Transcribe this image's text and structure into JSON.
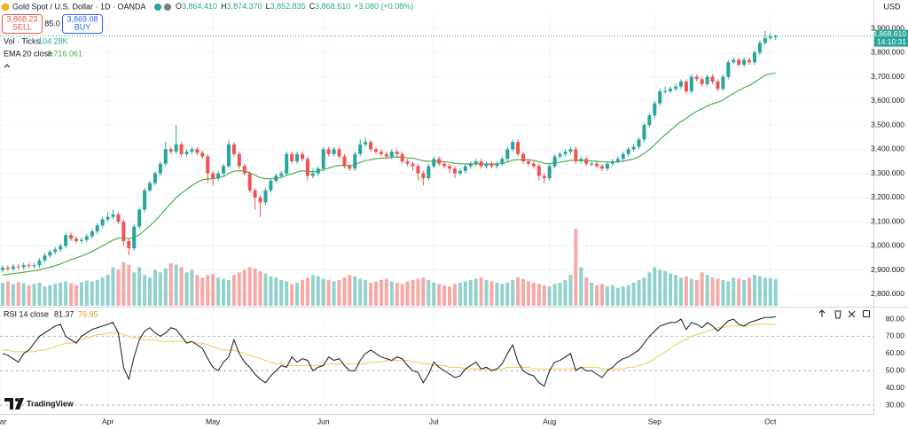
{
  "chart_data": {
    "type": "candlestick",
    "title": "Gold Spot / U.S. Dollar · 1D · OANDA",
    "currency": "USD",
    "sell": {
      "price": "3,868.23",
      "label": "SELL"
    },
    "buy": {
      "price": "3,869.08",
      "label": "BUY"
    },
    "spread": "85.0",
    "ohlc_header": [
      {
        "key": "O",
        "label": "3,864.410"
      },
      {
        "key": "H",
        "label": "3,874.370"
      },
      {
        "key": "L",
        "label": "3,852.835"
      },
      {
        "key": "C",
        "label": "3,868.610"
      }
    ],
    "change": "+3.080 (+0.08%)",
    "last_price_label": "3,868.610",
    "countdown": "14:10:31",
    "brand": "TradingView",
    "up_color": "#26a69a",
    "down_color": "#ef5350",
    "grid": true,
    "xlim": [
      -0.5,
      165.6
    ],
    "xticks": [
      {
        "value": -0.5,
        "label": "Mar"
      },
      {
        "value": 20,
        "label": "Apr"
      },
      {
        "value": 40,
        "label": "May"
      },
      {
        "value": 61,
        "label": "Jun"
      },
      {
        "value": 82,
        "label": "Jul"
      },
      {
        "value": 104,
        "label": "Aug"
      },
      {
        "value": 124,
        "label": "Sep"
      },
      {
        "value": 146,
        "label": "Oct"
      }
    ],
    "ylim": [
      2752,
      3959
    ],
    "yticks": [
      {
        "value": 2800,
        "label": "2,800.000"
      },
      {
        "value": 2900,
        "label": "2,900.000"
      },
      {
        "value": 3000,
        "label": "3,000.000"
      },
      {
        "value": 3100,
        "label": "3,100.000"
      },
      {
        "value": 3200,
        "label": "3,200.000"
      },
      {
        "value": 3300,
        "label": "3,300.000"
      },
      {
        "value": 3400,
        "label": "3,400.000"
      },
      {
        "value": 3500,
        "label": "3,500.000"
      },
      {
        "value": 3600,
        "label": "3,600.000"
      },
      {
        "value": 3700,
        "label": "3,700.000"
      },
      {
        "value": 3800,
        "label": "3,800.000"
      },
      {
        "value": 3900,
        "label": "3,900.000"
      }
    ],
    "candles": {
      "open": [
        2900,
        2910,
        2905,
        2915,
        2912,
        2920,
        2918,
        2920,
        2940,
        2960,
        2975,
        2985,
        3000,
        3045,
        3030,
        3020,
        3025,
        3040,
        3060,
        3085,
        3110,
        3120,
        3130,
        3100,
        3020,
        2990,
        3080,
        3150,
        3230,
        3260,
        3300,
        3340,
        3400,
        3390,
        3420,
        3380,
        3390,
        3400,
        3385,
        3370,
        3300,
        3280,
        3300,
        3330,
        3420,
        3380,
        3330,
        3300,
        3230,
        3200,
        3180,
        3230,
        3270,
        3290,
        3300,
        3380,
        3350,
        3380,
        3360,
        3290,
        3300,
        3320,
        3400,
        3380,
        3400,
        3370,
        3330,
        3320,
        3380,
        3420,
        3430,
        3400,
        3390,
        3380,
        3370,
        3390,
        3380,
        3350,
        3340,
        3330,
        3300,
        3280,
        3330,
        3360,
        3340,
        3330,
        3320,
        3300,
        3310,
        3330,
        3340,
        3350,
        3330,
        3340,
        3330,
        3340,
        3360,
        3400,
        3430,
        3380,
        3350,
        3340,
        3330,
        3290,
        3280,
        3330,
        3370,
        3380,
        3390,
        3400,
        3350,
        3360,
        3340,
        3340,
        3330,
        3320,
        3340,
        3350,
        3360,
        3380,
        3400,
        3410,
        3440,
        3500,
        3540,
        3590,
        3640,
        3640,
        3650,
        3660,
        3680,
        3640,
        3700,
        3690,
        3670,
        3700,
        3680,
        3650,
        3700,
        3760,
        3770,
        3750,
        3770,
        3760,
        3800,
        3840,
        3860,
        3864.41
      ],
      "high": [
        2920,
        2920,
        2925,
        2925,
        2930,
        2930,
        2930,
        2950,
        2970,
        2985,
        2995,
        3010,
        3055,
        3055,
        3040,
        3035,
        3050,
        3070,
        3095,
        3120,
        3140,
        3150,
        3140,
        3110,
        3030,
        3090,
        3160,
        3240,
        3270,
        3310,
        3350,
        3430,
        3410,
        3500,
        3430,
        3400,
        3410,
        3410,
        3395,
        3380,
        3310,
        3310,
        3340,
        3440,
        3430,
        3390,
        3340,
        3310,
        3240,
        3210,
        3240,
        3280,
        3300,
        3310,
        3390,
        3390,
        3390,
        3390,
        3370,
        3320,
        3330,
        3410,
        3410,
        3410,
        3410,
        3380,
        3340,
        3390,
        3440,
        3450,
        3440,
        3410,
        3400,
        3390,
        3400,
        3400,
        3390,
        3360,
        3350,
        3340,
        3310,
        3340,
        3370,
        3370,
        3350,
        3340,
        3330,
        3320,
        3340,
        3350,
        3360,
        3360,
        3350,
        3350,
        3350,
        3370,
        3410,
        3440,
        3440,
        3390,
        3360,
        3350,
        3340,
        3300,
        3340,
        3380,
        3390,
        3400,
        3410,
        3410,
        3370,
        3370,
        3350,
        3350,
        3340,
        3350,
        3360,
        3370,
        3390,
        3410,
        3420,
        3450,
        3510,
        3550,
        3600,
        3650,
        3660,
        3660,
        3670,
        3690,
        3690,
        3710,
        3710,
        3700,
        3710,
        3710,
        3690,
        3710,
        3770,
        3780,
        3780,
        3780,
        3780,
        3810,
        3850,
        3890,
        3880,
        3874.37
      ],
      "low": [
        2890,
        2895,
        2895,
        2902,
        2902,
        2908,
        2908,
        2910,
        2930,
        2950,
        2965,
        2975,
        2990,
        3020,
        3010,
        3010,
        3015,
        3030,
        3050,
        3075,
        3100,
        3110,
        3090,
        3000,
        2960,
        2980,
        3070,
        3140,
        3220,
        3250,
        3290,
        3330,
        3380,
        3380,
        3370,
        3370,
        3380,
        3375,
        3360,
        3260,
        3250,
        3270,
        3290,
        3320,
        3370,
        3320,
        3290,
        3220,
        3150,
        3120,
        3170,
        3220,
        3260,
        3280,
        3290,
        3340,
        3340,
        3350,
        3270,
        3280,
        3290,
        3310,
        3370,
        3370,
        3360,
        3320,
        3310,
        3310,
        3370,
        3410,
        3390,
        3380,
        3370,
        3360,
        3360,
        3370,
        3340,
        3330,
        3310,
        3270,
        3250,
        3270,
        3320,
        3330,
        3320,
        3300,
        3280,
        3290,
        3300,
        3320,
        3330,
        3320,
        3320,
        3320,
        3320,
        3330,
        3350,
        3390,
        3370,
        3340,
        3330,
        3320,
        3270,
        3260,
        3270,
        3320,
        3360,
        3370,
        3380,
        3340,
        3340,
        3330,
        3330,
        3320,
        3310,
        3310,
        3330,
        3340,
        3350,
        3370,
        3390,
        3400,
        3430,
        3490,
        3530,
        3580,
        3630,
        3630,
        3640,
        3650,
        3630,
        3630,
        3680,
        3660,
        3660,
        3670,
        3640,
        3640,
        3690,
        3750,
        3740,
        3740,
        3750,
        3750,
        3790,
        3830,
        3850,
        3852.835
      ],
      "close": [
        2910,
        2905,
        2915,
        2912,
        2920,
        2918,
        2920,
        2940,
        2960,
        2975,
        2985,
        3000,
        3045,
        3030,
        3020,
        3025,
        3040,
        3060,
        3085,
        3110,
        3120,
        3130,
        3100,
        3020,
        2990,
        3080,
        3150,
        3230,
        3260,
        3300,
        3340,
        3400,
        3390,
        3420,
        3380,
        3390,
        3400,
        3385,
        3370,
        3300,
        3280,
        3300,
        3330,
        3420,
        3380,
        3330,
        3300,
        3230,
        3200,
        3180,
        3230,
        3270,
        3290,
        3300,
        3380,
        3350,
        3380,
        3360,
        3290,
        3300,
        3320,
        3400,
        3380,
        3400,
        3370,
        3330,
        3320,
        3380,
        3420,
        3430,
        3400,
        3390,
        3380,
        3370,
        3390,
        3380,
        3350,
        3340,
        3330,
        3300,
        3280,
        3330,
        3360,
        3340,
        3330,
        3320,
        3300,
        3310,
        3330,
        3340,
        3350,
        3330,
        3340,
        3330,
        3340,
        3360,
        3400,
        3430,
        3380,
        3350,
        3340,
        3330,
        3290,
        3280,
        3330,
        3370,
        3380,
        3390,
        3400,
        3350,
        3360,
        3340,
        3340,
        3330,
        3320,
        3340,
        3350,
        3360,
        3380,
        3400,
        3410,
        3440,
        3500,
        3540,
        3590,
        3640,
        3640,
        3650,
        3660,
        3680,
        3640,
        3700,
        3690,
        3670,
        3700,
        3680,
        3650,
        3700,
        3760,
        3770,
        3750,
        3770,
        3760,
        3800,
        3840,
        3860,
        3865.53,
        3868.61
      ]
    },
    "volume": {
      "name": "Vol · Ticks",
      "last_label": "104.28K",
      "values": [
        90,
        95,
        85,
        92,
        88,
        80,
        85,
        90,
        75,
        80,
        85,
        90,
        95,
        88,
        80,
        92,
        98,
        95,
        100,
        110,
        120,
        150,
        140,
        170,
        160,
        130,
        150,
        120,
        110,
        140,
        130,
        145,
        165,
        160,
        150,
        130,
        140,
        120,
        110,
        120,
        125,
        110,
        105,
        100,
        120,
        130,
        140,
        150,
        145,
        135,
        125,
        115,
        110,
        100,
        95,
        85,
        90,
        100,
        110,
        120,
        115,
        105,
        100,
        95,
        100,
        110,
        120,
        115,
        105,
        100,
        90,
        95,
        100,
        105,
        95,
        90,
        85,
        95,
        100,
        105,
        110,
        100,
        90,
        85,
        80,
        75,
        85,
        90,
        95,
        100,
        105,
        110,
        100,
        95,
        90,
        85,
        90,
        100,
        110,
        105,
        95,
        90,
        85,
        80,
        75,
        85,
        90,
        100,
        120,
        300,
        150,
        110,
        90,
        80,
        85,
        75,
        80,
        70,
        75,
        80,
        90,
        100,
        110,
        130,
        150,
        140,
        135,
        125,
        120,
        110,
        115,
        105,
        100,
        130,
        120,
        110,
        105,
        100,
        95,
        110,
        105,
        100,
        110,
        120,
        115,
        110,
        108,
        104.28
      ]
    },
    "ema": {
      "name": "EMA 20 close",
      "color": "#4caf50",
      "last_label": "3,716.061",
      "values": [
        2880,
        2882,
        2885,
        2888,
        2891,
        2894,
        2897,
        2901,
        2906,
        2912,
        2918,
        2925,
        2935,
        2943,
        2950,
        2958,
        2967,
        2977,
        2988,
        3000,
        3012,
        3024,
        3032,
        3032,
        3030,
        3035,
        3046,
        3064,
        3083,
        3104,
        3127,
        3153,
        3176,
        3200,
        3217,
        3234,
        3250,
        3263,
        3274,
        3277,
        3278,
        3281,
        3287,
        3301,
        3309,
        3311,
        3310,
        3302,
        3293,
        3282,
        3278,
        3278,
        3280,
        3283,
        3292,
        3298,
        3306,
        3311,
        3308,
        3307,
        3308,
        3316,
        3322,
        3329,
        3333,
        3333,
        3332,
        3337,
        3345,
        3353,
        3357,
        3361,
        3363,
        3364,
        3367,
        3368,
        3367,
        3365,
        3363,
        3358,
        3352,
        3350,
        3351,
        3350,
        3348,
        3346,
        3342,
        3340,
        3339,
        3339,
        3340,
        3339,
        3339,
        3339,
        3339,
        3341,
        3347,
        3355,
        3357,
        3357,
        3356,
        3354,
        3348,
        3342,
        3340,
        3343,
        3346,
        3350,
        3354,
        3354,
        3354,
        3353,
        3352,
        3350,
        3348,
        3347,
        3347,
        3348,
        3350,
        3355,
        3360,
        3369,
        3383,
        3399,
        3418,
        3440,
        3460,
        3479,
        3497,
        3515,
        3527,
        3544,
        3557,
        3567,
        3579,
        3588,
        3594,
        3604,
        3618,
        3632,
        3643,
        3655,
        3664,
        3677,
        3692,
        3707,
        3711,
        3716.061
      ]
    },
    "rsi": {
      "name": "RSI 14 close",
      "color": "#131722",
      "ylim": [
        25.9,
        86.2
      ],
      "yticks": [
        {
          "value": 30,
          "label": "30.00"
        },
        {
          "value": 40,
          "label": "40.00"
        },
        {
          "value": 50,
          "label": "50.00"
        },
        {
          "value": 60,
          "label": "60.00"
        },
        {
          "value": 70,
          "label": "70.00"
        },
        {
          "value": 80,
          "label": "80.00"
        }
      ],
      "levels": [
        70,
        50,
        30
      ],
      "values": [
        60,
        59,
        57,
        55,
        60,
        62,
        66,
        70,
        72,
        74,
        76,
        77,
        70,
        68,
        66,
        70,
        72,
        74,
        75,
        76,
        77,
        78,
        72,
        52,
        45,
        58,
        68,
        73,
        75,
        72,
        70,
        72,
        75,
        74,
        70,
        66,
        67,
        65,
        63,
        57,
        52,
        50,
        55,
        58,
        68,
        60,
        55,
        52,
        48,
        45,
        43,
        47,
        50,
        53,
        52,
        58,
        55,
        57,
        56,
        50,
        52,
        53,
        58,
        56,
        57,
        53,
        50,
        50,
        56,
        60,
        62,
        60,
        58,
        57,
        56,
        58,
        57,
        53,
        50,
        49,
        43,
        48,
        55,
        52,
        50,
        48,
        46,
        47,
        51,
        53,
        55,
        51,
        52,
        50,
        51,
        54,
        60,
        65,
        55,
        50,
        48,
        47,
        43,
        41,
        50,
        55,
        56,
        58,
        60,
        50,
        52,
        50,
        50,
        48,
        46,
        50,
        52,
        55,
        57,
        58,
        60,
        62,
        66,
        70,
        73,
        76,
        77,
        78,
        78,
        80,
        74,
        78,
        77,
        75,
        78,
        76,
        73,
        76,
        79,
        80,
        77,
        76,
        78,
        79,
        80,
        81,
        81,
        81.37
      ]
    },
    "rsi_ma": {
      "color": "#f2c94c",
      "values": [
        62,
        62,
        61,
        61,
        61,
        61,
        61,
        62,
        62,
        63,
        64,
        65,
        66,
        66,
        67,
        68,
        69,
        70,
        71,
        71,
        72,
        72,
        72,
        71,
        70,
        69,
        69,
        68,
        68,
        68,
        67,
        67,
        67,
        67,
        67,
        67,
        67,
        66,
        66,
        65,
        64,
        63,
        62,
        62,
        62,
        61,
        60,
        59,
        58,
        57,
        56,
        55,
        54,
        54,
        53,
        53,
        53,
        53,
        53,
        53,
        53,
        53,
        54,
        54,
        54,
        54,
        54,
        54,
        54,
        54,
        55,
        55,
        55,
        56,
        56,
        56,
        56,
        56,
        55,
        55,
        54,
        54,
        53,
        53,
        53,
        52,
        52,
        52,
        51,
        51,
        51,
        51,
        51,
        51,
        51,
        51,
        52,
        52,
        52,
        52,
        52,
        51,
        51,
        51,
        51,
        51,
        51,
        51,
        51,
        51,
        52,
        52,
        52,
        52,
        51,
        51,
        51,
        51,
        51,
        52,
        52,
        53,
        54,
        55,
        57,
        59,
        61,
        63,
        65,
        67,
        68,
        70,
        71,
        72,
        73,
        74,
        75,
        75,
        76,
        76,
        76,
        76,
        76,
        77,
        77,
        77,
        77,
        76.95
      ]
    }
  }
}
